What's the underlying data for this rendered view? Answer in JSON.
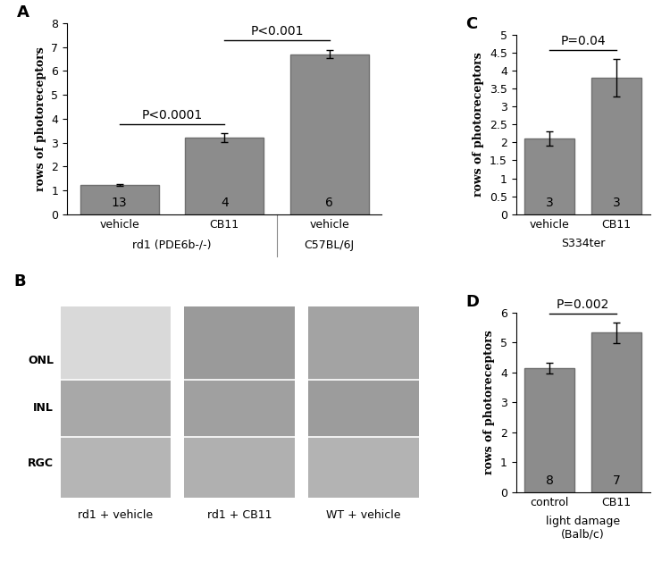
{
  "chart_data": [
    {
      "type": "bar",
      "title": "A",
      "y_label": "rows of photoreceptors",
      "categories": [
        "vehicle",
        "CB11",
        "vehicle"
      ],
      "groups": [
        "rd1 (PDE6b-/-)",
        "rd1 (PDE6b-/-)",
        "C57BL/6J"
      ],
      "values": [
        1.22,
        3.2,
        6.7
      ],
      "errors": [
        0.05,
        0.18,
        0.18
      ],
      "n": [
        13,
        4,
        6
      ],
      "comparisons": [
        {
          "between": [
            0,
            1
          ],
          "label": "P<0.0001"
        },
        {
          "between": [
            1,
            2
          ],
          "label": "P<0.001"
        }
      ],
      "color": "#8c8c8c",
      "ylim": [
        0,
        8
      ],
      "yticks": [
        0,
        1,
        2,
        3,
        4,
        5,
        6,
        7,
        8
      ],
      "grid": false
    },
    {
      "type": "bar",
      "title": "C",
      "y_label": "rows of photoreceptors",
      "categories": [
        "vehicle",
        "CB11"
      ],
      "groups": [
        "S334ter",
        "S334ter"
      ],
      "values": [
        2.1,
        3.8
      ],
      "errors": [
        0.2,
        0.52
      ],
      "n": [
        3,
        3
      ],
      "comparisons": [
        {
          "between": [
            0,
            1
          ],
          "label": "P=0.04"
        }
      ],
      "color": "#8c8c8c",
      "ylim": [
        0,
        5
      ],
      "yticks": [
        0,
        0.5,
        1,
        1.5,
        2,
        2.5,
        3,
        3.5,
        4,
        4.5,
        5
      ],
      "grid": false
    },
    {
      "type": "bar",
      "title": "D",
      "y_label": "rows of photoreceptors",
      "categories": [
        "control",
        "CB11"
      ],
      "groups": [
        "light damage\n(Balb/c)",
        "light damage\n(Balb/c)"
      ],
      "values": [
        4.15,
        5.33
      ],
      "errors": [
        0.18,
        0.35
      ],
      "n": [
        8,
        7
      ],
      "comparisons": [
        {
          "between": [
            0,
            1
          ],
          "label": "P=0.002"
        }
      ],
      "color": "#8c8c8c",
      "ylim": [
        0,
        6
      ],
      "yticks": [
        0,
        1,
        2,
        3,
        4,
        5,
        6
      ],
      "grid": false
    }
  ],
  "image_panel": {
    "title": "B",
    "layers": [
      "ONL",
      "INL",
      "RGC"
    ],
    "captions": [
      "rd1 + vehicle",
      "rd1 + CB11",
      "WT + vehicle"
    ]
  }
}
